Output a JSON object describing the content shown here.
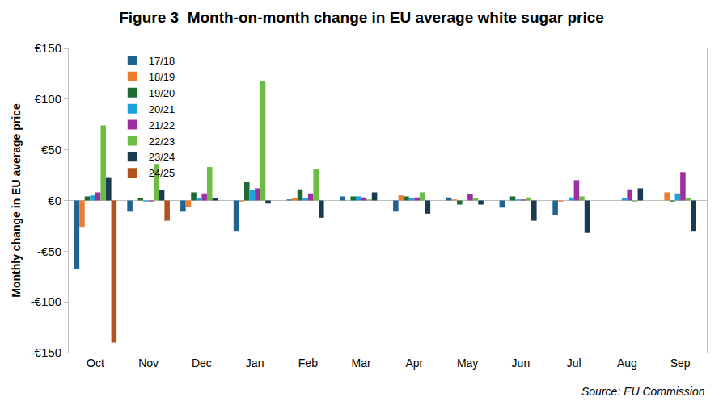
{
  "chart_data": {
    "type": "bar",
    "title": "Figure 3  Month-on-month change in EU average white sugar price",
    "y_label": "Monthly change in EU average price",
    "source": "Source: EU Commission",
    "categories": [
      "Oct",
      "Nov",
      "Dec",
      "Jan",
      "Feb",
      "Mar",
      "Apr",
      "May",
      "Jun",
      "Jul",
      "Aug",
      "Sep"
    ],
    "series": [
      {
        "name": "17/18",
        "color": "#1f6391",
        "values": [
          -68,
          -11,
          -11,
          -30,
          1,
          4,
          -11,
          3,
          -7,
          -14,
          0,
          0
        ]
      },
      {
        "name": "18/19",
        "color": "#ed7d31",
        "values": [
          -26,
          0,
          -6,
          -1,
          2,
          0,
          5,
          1,
          0,
          -1,
          0,
          8
        ]
      },
      {
        "name": "19/20",
        "color": "#1e6b34",
        "values": [
          4,
          2,
          8,
          18,
          11,
          4,
          4,
          -4,
          4,
          0,
          0,
          -1
        ]
      },
      {
        "name": "20/21",
        "color": "#1ca2dc",
        "values": [
          5,
          -1,
          2,
          10,
          2,
          4,
          2,
          0,
          1,
          3,
          2,
          7
        ]
      },
      {
        "name": "21/22",
        "color": "#9e2fa0",
        "values": [
          8,
          -1,
          7,
          12,
          7,
          3,
          3,
          6,
          1,
          20,
          11,
          28
        ]
      },
      {
        "name": "22/23",
        "color": "#6cbd45",
        "values": [
          74,
          36,
          33,
          118,
          31,
          1,
          8,
          2,
          3,
          4,
          -1,
          2
        ]
      },
      {
        "name": "23/24",
        "color": "#1b3a4f",
        "values": [
          23,
          10,
          2,
          -3,
          -17,
          8,
          -13,
          -4,
          -20,
          -32,
          12,
          -30
        ]
      },
      {
        "name": "24/25",
        "color": "#b3521e",
        "values": [
          -140,
          -20,
          null,
          null,
          null,
          null,
          null,
          null,
          null,
          null,
          null,
          null
        ]
      }
    ],
    "ylim": [
      -150,
      150
    ],
    "yticks": [
      {
        "value": -150,
        "label": "-€150"
      },
      {
        "value": -100,
        "label": "-€100"
      },
      {
        "value": -50,
        "label": "-€50"
      },
      {
        "value": 0,
        "label": "€0"
      },
      {
        "value": 50,
        "label": "€50"
      },
      {
        "value": 100,
        "label": "€100"
      },
      {
        "value": 150,
        "label": "€150"
      }
    ],
    "grid": false,
    "legend": "upper right"
  }
}
